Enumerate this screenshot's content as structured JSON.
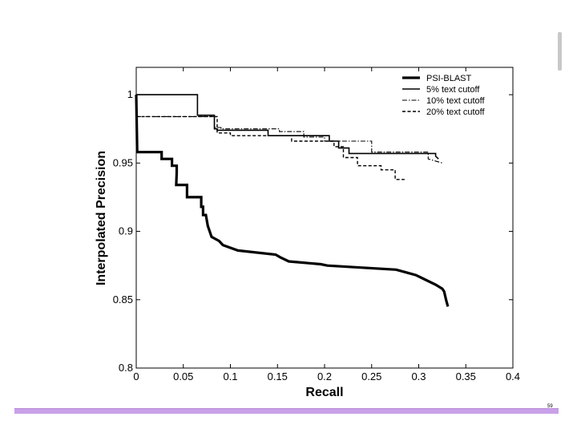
{
  "slide": {
    "page_number": "59",
    "footer_color": "#c9a0e8"
  },
  "chart_data": {
    "type": "line",
    "title": "",
    "xlabel": "Recall",
    "ylabel": "Interpolated Precision",
    "xlim": [
      0,
      0.4
    ],
    "ylim": [
      0.8,
      1.02
    ],
    "xticks": [
      0,
      0.05,
      0.1,
      0.15,
      0.2,
      0.25,
      0.3,
      0.35,
      0.4
    ],
    "xtick_labels": [
      "0",
      "0.05",
      "0.1",
      "0.15",
      "0.2",
      "0.25",
      "0.3",
      "0.35",
      "0.4"
    ],
    "yticks": [
      0.8,
      0.85,
      0.9,
      0.95,
      1
    ],
    "ytick_labels": [
      "0.8",
      "0.85",
      "0.9",
      "0.95",
      "1"
    ],
    "grid": false,
    "legend_position": "top-right",
    "series": [
      {
        "name": "PSI-BLAST",
        "style": "thick-solid",
        "x": [
          0,
          0.001,
          0.027,
          0.027,
          0.038,
          0.038,
          0.043,
          0.043,
          0.0425,
          0.054,
          0.054,
          0.069,
          0.069,
          0.071,
          0.071,
          0.074,
          0.076,
          0.076,
          0.08,
          0.08,
          0.088,
          0.088,
          0.092,
          0.092,
          0.108,
          0.108,
          0.148,
          0.148,
          0.153,
          0.153,
          0.162,
          0.162,
          0.196,
          0.196,
          0.203,
          0.203,
          0.276,
          0.276,
          0.297,
          0.297,
          0.303,
          0.303,
          0.318,
          0.318,
          0.325,
          0.325,
          0.327,
          0.327,
          0.329,
          0.331
        ],
        "y": [
          1.0,
          0.958,
          0.958,
          0.953,
          0.953,
          0.948,
          0.948,
          0.943,
          0.934,
          0.934,
          0.925,
          0.925,
          0.918,
          0.918,
          0.912,
          0.912,
          0.904,
          0.904,
          0.896,
          0.896,
          0.893,
          0.893,
          0.89,
          0.89,
          0.886,
          0.886,
          0.883,
          0.883,
          0.881,
          0.881,
          0.878,
          0.878,
          0.876,
          0.876,
          0.875,
          0.875,
          0.872,
          0.872,
          0.868,
          0.868,
          0.866,
          0.866,
          0.861,
          0.861,
          0.858,
          0.858,
          0.856,
          0.856,
          0.85,
          0.845
        ]
      },
      {
        "name": "5% text cutoff",
        "style": "solid",
        "x": [
          0,
          0.065,
          0.065,
          0.083,
          0.083,
          0.086,
          0.086,
          0.14,
          0.14,
          0.205,
          0.205,
          0.215,
          0.215,
          0.226,
          0.226,
          0.318,
          0.318,
          0.321
        ],
        "y": [
          1.0,
          1.0,
          0.985,
          0.985,
          0.975,
          0.975,
          0.974,
          0.974,
          0.97,
          0.97,
          0.966,
          0.966,
          0.961,
          0.961,
          0.957,
          0.957,
          0.955,
          0.953
        ]
      },
      {
        "name": "10% text cutoff",
        "style": "dashdot",
        "x": [
          0,
          0.083,
          0.083,
          0.09,
          0.09,
          0.152,
          0.152,
          0.178,
          0.178,
          0.2,
          0.2,
          0.25,
          0.25,
          0.31,
          0.31,
          0.325
        ],
        "y": [
          0.984,
          0.984,
          0.976,
          0.976,
          0.975,
          0.975,
          0.973,
          0.973,
          0.969,
          0.969,
          0.966,
          0.966,
          0.958,
          0.958,
          0.953,
          0.95
        ]
      },
      {
        "name": "20% text cutoff",
        "style": "dashed",
        "x": [
          0,
          0.086,
          0.086,
          0.1,
          0.1,
          0.165,
          0.165,
          0.21,
          0.21,
          0.22,
          0.22,
          0.235,
          0.235,
          0.26,
          0.26,
          0.275,
          0.275,
          0.285
        ],
        "y": [
          0.984,
          0.984,
          0.972,
          0.972,
          0.97,
          0.97,
          0.966,
          0.966,
          0.962,
          0.962,
          0.954,
          0.954,
          0.948,
          0.948,
          0.945,
          0.945,
          0.938,
          0.938
        ]
      }
    ]
  }
}
